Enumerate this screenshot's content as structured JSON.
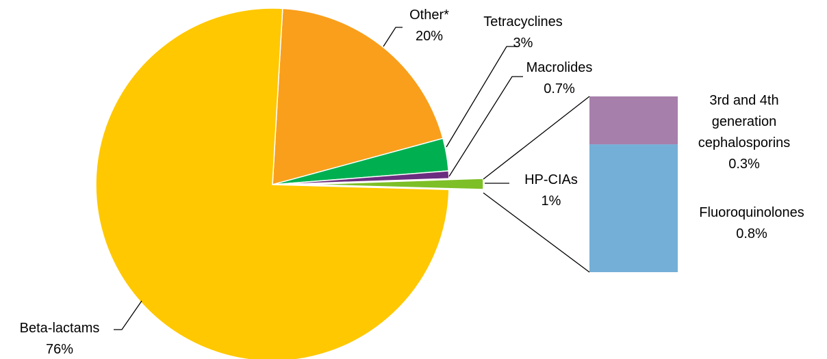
{
  "chart_data": {
    "type": "pie",
    "categories": [
      "Other*",
      "Tetracyclines",
      "Macrolides",
      "HP-CIAs",
      "Beta-lactams"
    ],
    "values": [
      20,
      3,
      0.7,
      1,
      76
    ],
    "value_labels": [
      "20%",
      "3%",
      "0.7%",
      "1%",
      "76%"
    ],
    "colors": [
      "#f99f1b",
      "#00b050",
      "#6b2d7f",
      "#7dbf26",
      "#ffc800"
    ],
    "breakdown": {
      "type": "bar",
      "categories": [
        "3rd and 4th generation cephalosporins",
        "Fluoroquinolones"
      ],
      "values": [
        0.3,
        0.8
      ],
      "value_labels": [
        "0.3%",
        "0.8%"
      ],
      "colors": [
        "#a67fab",
        "#74afd7"
      ]
    }
  }
}
